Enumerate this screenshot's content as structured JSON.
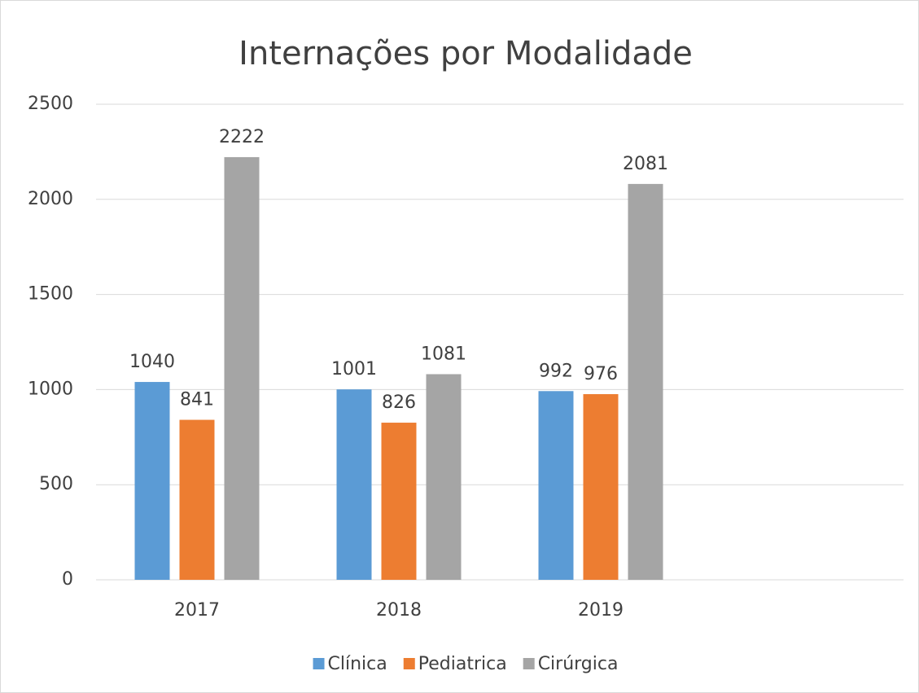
{
  "chart_data": {
    "type": "bar",
    "title": "Internações por Modalidade",
    "categories": [
      "2017",
      "2018",
      "2019",
      null
    ],
    "series": [
      {
        "name": "Clínica",
        "color": "#5b9bd5",
        "values": [
          1040,
          1001,
          992,
          null
        ]
      },
      {
        "name": "Pediatrica",
        "color": "#ed7d31",
        "values": [
          841,
          826,
          976,
          null
        ]
      },
      {
        "name": "Cirúrgica",
        "color": "#a5a5a5",
        "values": [
          2222,
          1081,
          2081,
          null
        ]
      }
    ],
    "ylim": [
      0,
      2500
    ],
    "yticks": [
      0,
      500,
      1000,
      1500,
      2000,
      2500
    ],
    "grid": true,
    "legend": "bottom"
  }
}
